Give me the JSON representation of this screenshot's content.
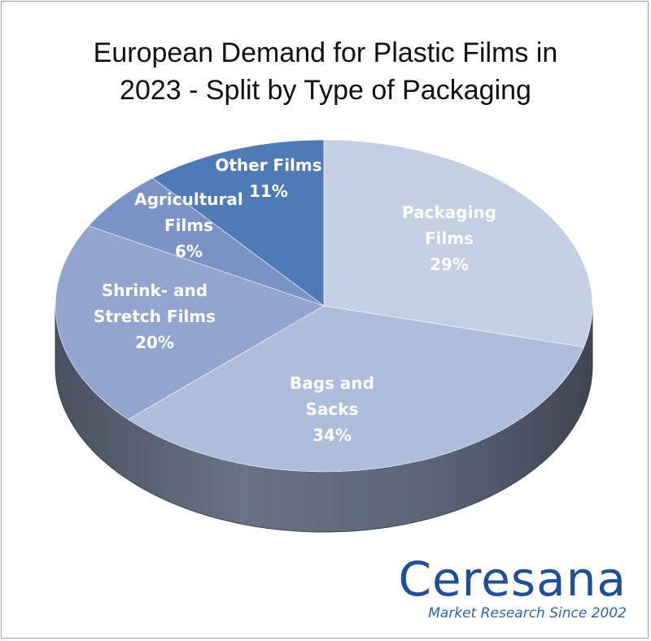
{
  "chart_data": {
    "type": "pie",
    "title": [
      "European Demand for Plastic Films in",
      "2023 - Split by Type of Packaging"
    ],
    "slices": [
      {
        "label": [
          "Packaging",
          "Films"
        ],
        "value": 29,
        "value_label": "29%",
        "color": "#c5cfe3"
      },
      {
        "label": [
          "Bags and",
          "Sacks"
        ],
        "value": 34,
        "value_label": "34%",
        "color": "#aebddc"
      },
      {
        "label": [
          "Shrink- and",
          "Stretch Films"
        ],
        "value": 20,
        "value_label": "20%",
        "color": "#91a5cf"
      },
      {
        "label": [
          "Agricultural",
          "Films"
        ],
        "value": 6,
        "value_label": "6%",
        "color": "#7a93c6"
      },
      {
        "label": [
          "Other Films"
        ],
        "value": 11,
        "value_label": "11%",
        "color": "#4f7ab8"
      }
    ],
    "depth_color": "#5b6478"
  },
  "brand": {
    "name": "Ceresana",
    "tagline": "Market Research Since 2002"
  }
}
